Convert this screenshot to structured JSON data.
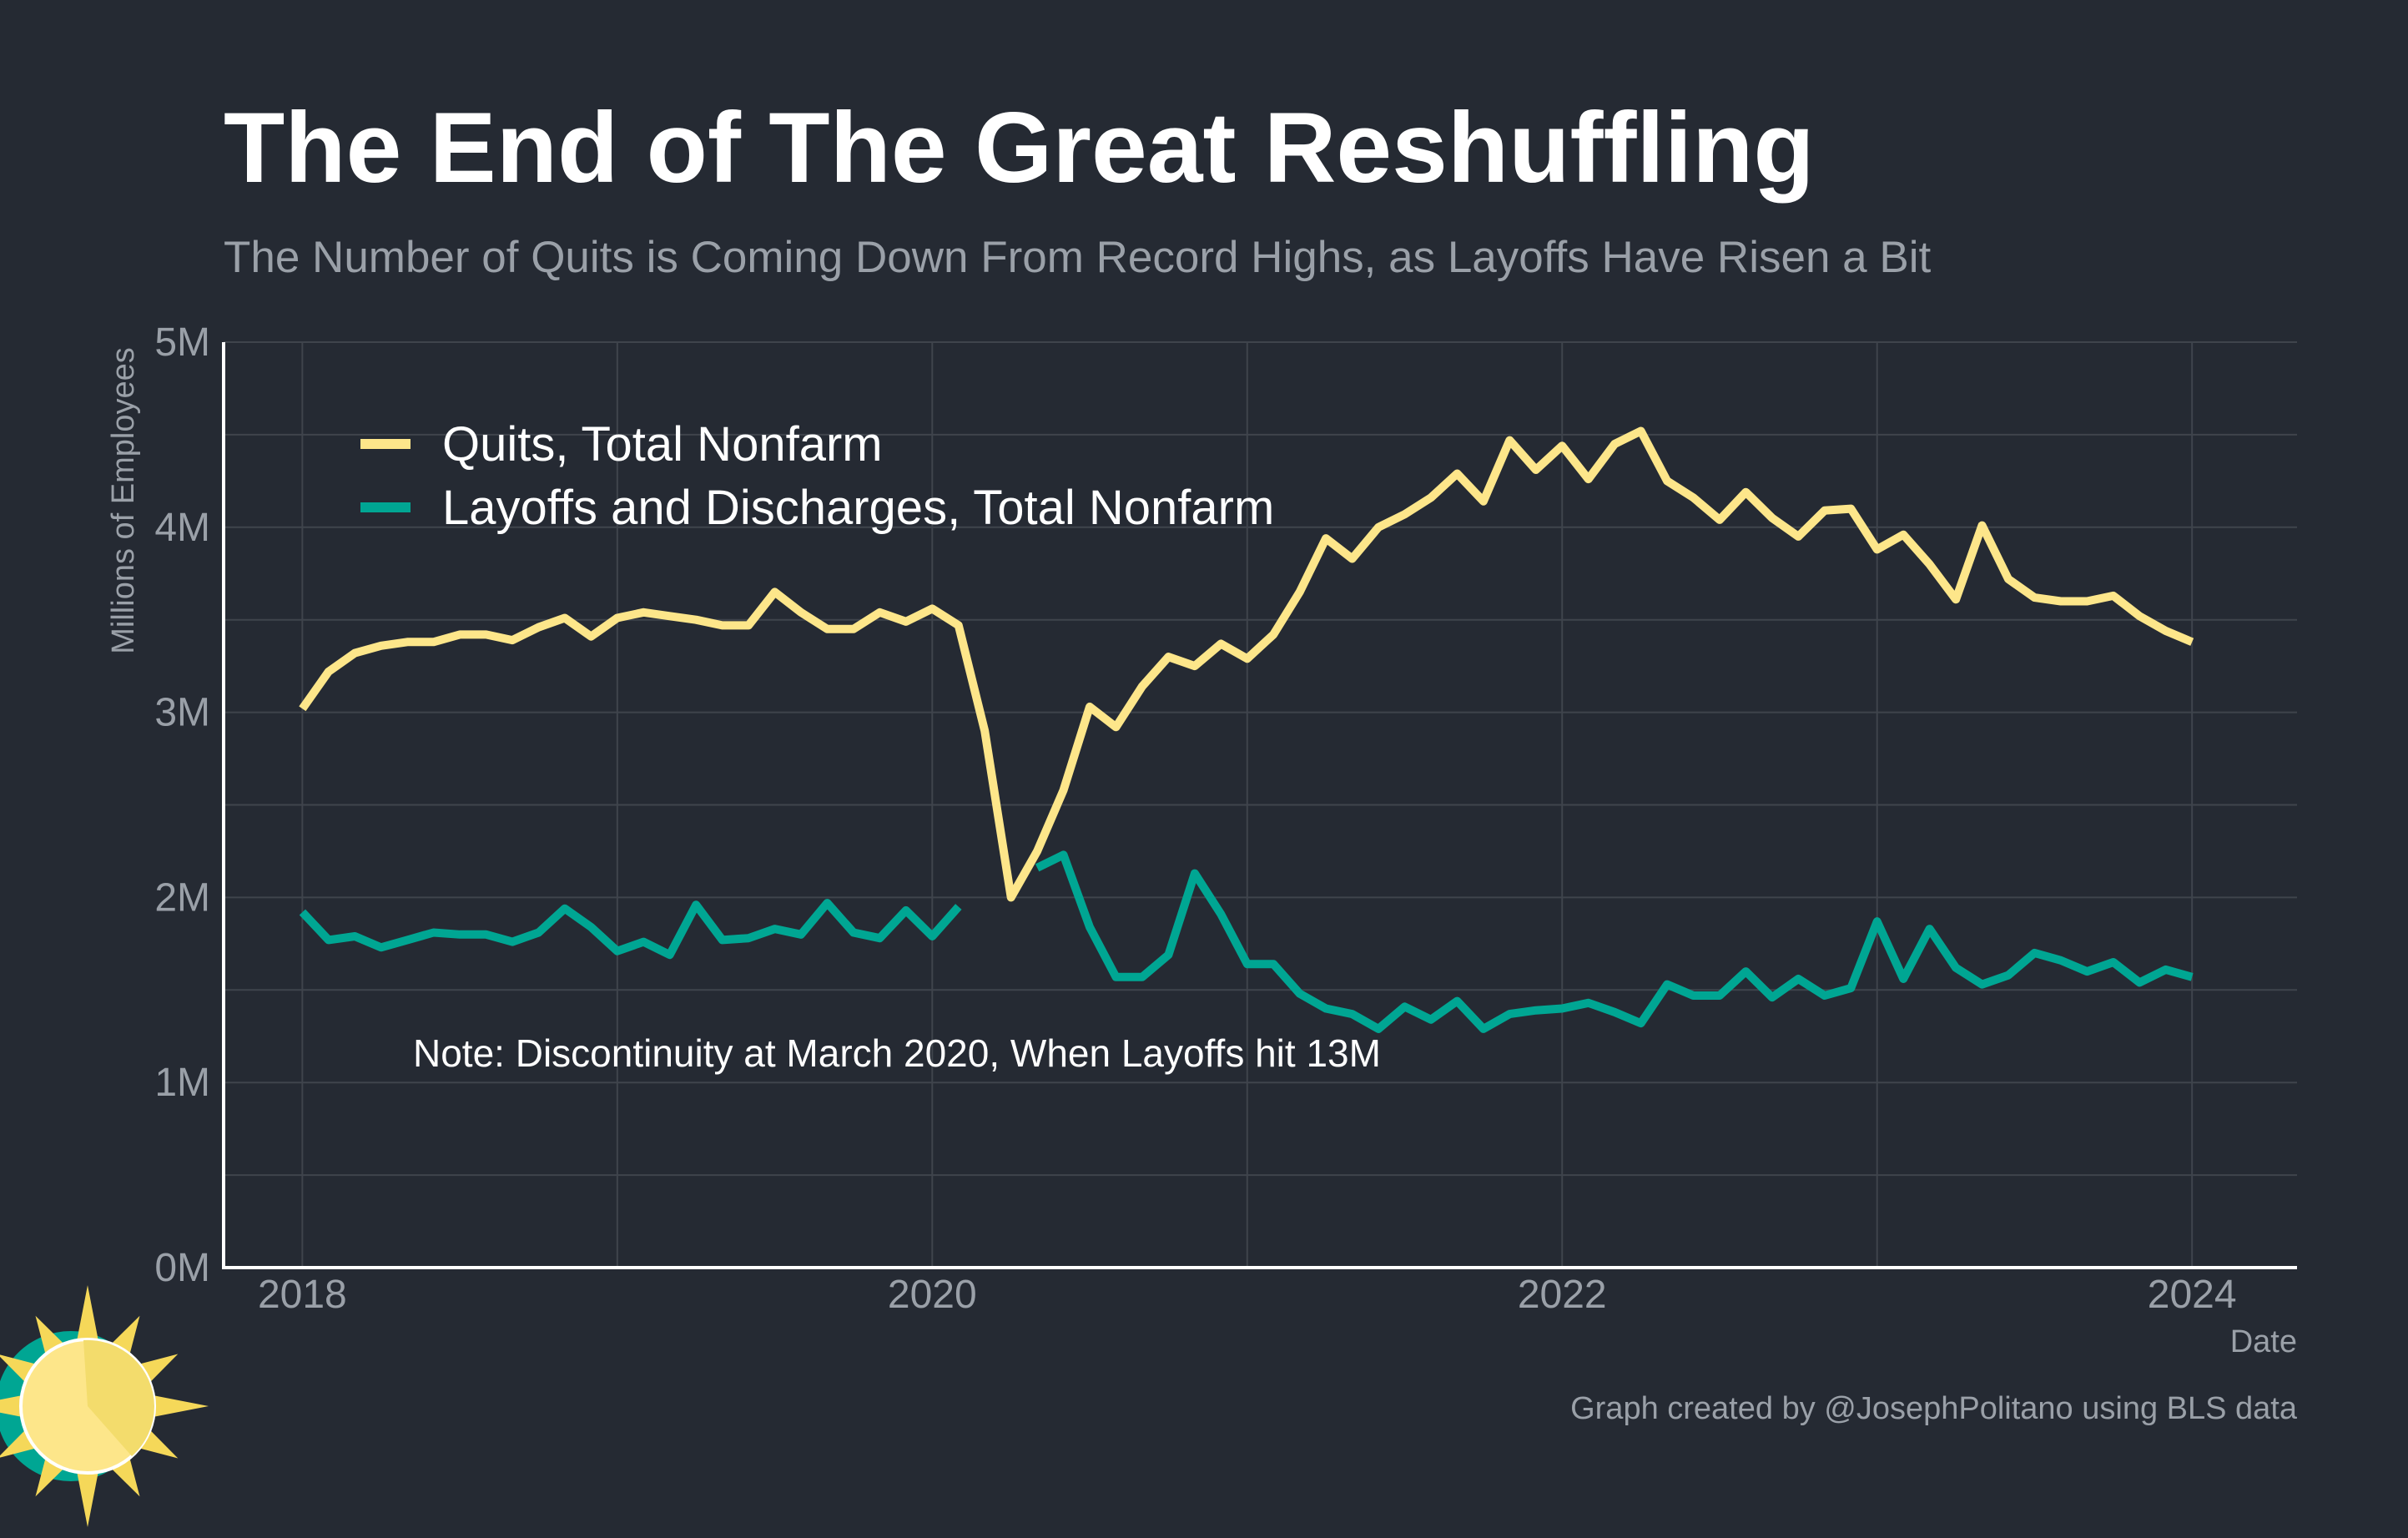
{
  "chart_data": {
    "type": "line",
    "title": "The End of The Great Reshuffling",
    "subtitle": "The Number of Quits is Coming Down From Record Highs, as Layoffs Have Risen a Bit",
    "xlabel": "Date",
    "ylabel": "Millions of Employees",
    "xlim": [
      "2017-10",
      "2024-05"
    ],
    "ylim": [
      0,
      5
    ],
    "x_ticks": [
      {
        "value": "2018-01",
        "label": "2018"
      },
      {
        "value": "2020-01",
        "label": "2020"
      },
      {
        "value": "2022-01",
        "label": "2022"
      },
      {
        "value": "2024-01",
        "label": "2024"
      }
    ],
    "y_ticks": [
      {
        "value": 0,
        "label": "0M"
      },
      {
        "value": 1,
        "label": "1M"
      },
      {
        "value": 2,
        "label": "2M"
      },
      {
        "value": 3,
        "label": "3M"
      },
      {
        "value": 4,
        "label": "4M"
      },
      {
        "value": 5,
        "label": "5M"
      }
    ],
    "grid": true,
    "legend_position": "top-left",
    "annotation": "Note: Discontinuity at March 2020, When Layoffs hit 13M",
    "source": "Graph created by @JosephPolitano using BLS data",
    "series": [
      {
        "name": "Quits, Total Nonfarm",
        "color": "#fde68a",
        "points": [
          [
            "2018-01",
            3.02
          ],
          [
            "2018-02",
            3.22
          ],
          [
            "2018-03",
            3.32
          ],
          [
            "2018-04",
            3.36
          ],
          [
            "2018-05",
            3.38
          ],
          [
            "2018-06",
            3.38
          ],
          [
            "2018-07",
            3.42
          ],
          [
            "2018-08",
            3.42
          ],
          [
            "2018-09",
            3.39
          ],
          [
            "2018-10",
            3.46
          ],
          [
            "2018-11",
            3.51
          ],
          [
            "2018-12",
            3.41
          ],
          [
            "2019-01",
            3.51
          ],
          [
            "2019-02",
            3.54
          ],
          [
            "2019-03",
            3.52
          ],
          [
            "2019-04",
            3.5
          ],
          [
            "2019-05",
            3.47
          ],
          [
            "2019-06",
            3.47
          ],
          [
            "2019-07",
            3.65
          ],
          [
            "2019-08",
            3.54
          ],
          [
            "2019-09",
            3.45
          ],
          [
            "2019-10",
            3.45
          ],
          [
            "2019-11",
            3.54
          ],
          [
            "2019-12",
            3.49
          ],
          [
            "2020-01",
            3.56
          ],
          [
            "2020-02",
            3.47
          ],
          [
            "2020-03",
            2.9
          ],
          [
            "2020-04",
            2.0
          ],
          [
            "2020-05",
            2.25
          ],
          [
            "2020-06",
            2.58
          ],
          [
            "2020-07",
            3.03
          ],
          [
            "2020-08",
            2.92
          ],
          [
            "2020-09",
            3.14
          ],
          [
            "2020-10",
            3.3
          ],
          [
            "2020-11",
            3.25
          ],
          [
            "2020-12",
            3.37
          ],
          [
            "2021-01",
            3.29
          ],
          [
            "2021-02",
            3.42
          ],
          [
            "2021-03",
            3.65
          ],
          [
            "2021-04",
            3.94
          ],
          [
            "2021-05",
            3.83
          ],
          [
            "2021-06",
            4.0
          ],
          [
            "2021-07",
            4.07
          ],
          [
            "2021-08",
            4.16
          ],
          [
            "2021-09",
            4.29
          ],
          [
            "2021-10",
            4.14
          ],
          [
            "2021-11",
            4.47
          ],
          [
            "2021-12",
            4.31
          ],
          [
            "2022-01",
            4.44
          ],
          [
            "2022-02",
            4.26
          ],
          [
            "2022-03",
            4.45
          ],
          [
            "2022-04",
            4.52
          ],
          [
            "2022-05",
            4.25
          ],
          [
            "2022-06",
            4.16
          ],
          [
            "2022-07",
            4.04
          ],
          [
            "2022-08",
            4.19
          ],
          [
            "2022-09",
            4.05
          ],
          [
            "2022-10",
            3.95
          ],
          [
            "2022-11",
            4.09
          ],
          [
            "2022-12",
            4.1
          ],
          [
            "2023-01",
            3.88
          ],
          [
            "2023-02",
            3.96
          ],
          [
            "2023-03",
            3.8
          ],
          [
            "2023-04",
            3.61
          ],
          [
            "2023-05",
            4.01
          ],
          [
            "2023-06",
            3.72
          ],
          [
            "2023-07",
            3.62
          ],
          [
            "2023-08",
            3.6
          ],
          [
            "2023-09",
            3.6
          ],
          [
            "2023-10",
            3.63
          ],
          [
            "2023-11",
            3.52
          ],
          [
            "2023-12",
            3.44
          ],
          [
            "2024-01",
            3.38
          ]
        ]
      },
      {
        "name": "Layoffs and Discharges, Total Nonfarm",
        "color": "#00a693",
        "points": [
          [
            "2018-01",
            1.92
          ],
          [
            "2018-02",
            1.77
          ],
          [
            "2018-03",
            1.79
          ],
          [
            "2018-04",
            1.73
          ],
          [
            "2018-05",
            1.77
          ],
          [
            "2018-06",
            1.81
          ],
          [
            "2018-07",
            1.8
          ],
          [
            "2018-08",
            1.8
          ],
          [
            "2018-09",
            1.76
          ],
          [
            "2018-10",
            1.81
          ],
          [
            "2018-11",
            1.94
          ],
          [
            "2018-12",
            1.84
          ],
          [
            "2019-01",
            1.71
          ],
          [
            "2019-02",
            1.76
          ],
          [
            "2019-03",
            1.69
          ],
          [
            "2019-04",
            1.96
          ],
          [
            "2019-05",
            1.77
          ],
          [
            "2019-06",
            1.78
          ],
          [
            "2019-07",
            1.83
          ],
          [
            "2019-08",
            1.8
          ],
          [
            "2019-09",
            1.97
          ],
          [
            "2019-10",
            1.81
          ],
          [
            "2019-11",
            1.78
          ],
          [
            "2019-12",
            1.93
          ],
          [
            "2020-01",
            1.79
          ],
          [
            "2020-02",
            1.95
          ],
          [
            "2020-03",
            null
          ],
          [
            "2020-04",
            null
          ],
          [
            "2020-05",
            2.16
          ],
          [
            "2020-06",
            2.23
          ],
          [
            "2020-07",
            1.84
          ],
          [
            "2020-08",
            1.57
          ],
          [
            "2020-09",
            1.57
          ],
          [
            "2020-10",
            1.69
          ],
          [
            "2020-11",
            2.13
          ],
          [
            "2020-12",
            1.91
          ],
          [
            "2021-01",
            1.64
          ],
          [
            "2021-02",
            1.64
          ],
          [
            "2021-03",
            1.48
          ],
          [
            "2021-04",
            1.4
          ],
          [
            "2021-05",
            1.37
          ],
          [
            "2021-06",
            1.29
          ],
          [
            "2021-07",
            1.41
          ],
          [
            "2021-08",
            1.34
          ],
          [
            "2021-09",
            1.44
          ],
          [
            "2021-10",
            1.29
          ],
          [
            "2021-11",
            1.37
          ],
          [
            "2021-12",
            1.39
          ],
          [
            "2022-01",
            1.4
          ],
          [
            "2022-02",
            1.43
          ],
          [
            "2022-03",
            1.38
          ],
          [
            "2022-04",
            1.32
          ],
          [
            "2022-05",
            1.53
          ],
          [
            "2022-06",
            1.47
          ],
          [
            "2022-07",
            1.47
          ],
          [
            "2022-08",
            1.6
          ],
          [
            "2022-09",
            1.46
          ],
          [
            "2022-10",
            1.56
          ],
          [
            "2022-11",
            1.47
          ],
          [
            "2022-12",
            1.51
          ],
          [
            "2023-01",
            1.87
          ],
          [
            "2023-02",
            1.56
          ],
          [
            "2023-03",
            1.83
          ],
          [
            "2023-04",
            1.62
          ],
          [
            "2023-05",
            1.53
          ],
          [
            "2023-06",
            1.58
          ],
          [
            "2023-07",
            1.7
          ],
          [
            "2023-08",
            1.66
          ],
          [
            "2023-09",
            1.6
          ],
          [
            "2023-10",
            1.65
          ],
          [
            "2023-11",
            1.54
          ],
          [
            "2023-12",
            1.61
          ],
          [
            "2024-01",
            1.57
          ]
        ]
      }
    ]
  },
  "logo": {
    "colors": {
      "ring": "#00a693",
      "sun": "#fde68a",
      "rays": "#f5d859",
      "wedge": "#f3dc6c"
    }
  },
  "colors": {
    "background": "#252a33",
    "grid": "#3f444c",
    "axis": "#ffffff",
    "muted": "#9aa0a8",
    "text": "#ffffff"
  }
}
